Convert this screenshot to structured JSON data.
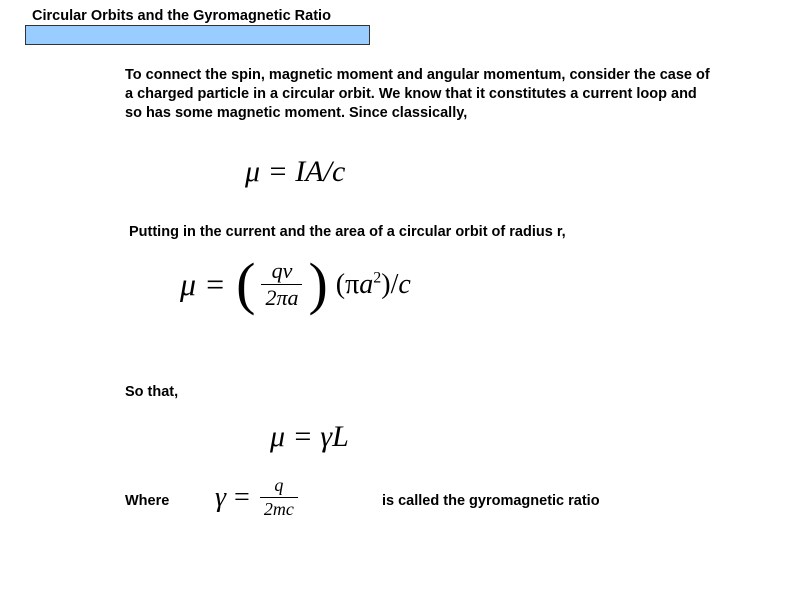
{
  "title": "Circular Orbits and the Gyromagnetic Ratio",
  "para1": "To connect the spin, magnetic moment and angular momentum, consider the case of a charged particle in a circular orbit. We know that it constitutes a current loop and so has some magnetic moment. Since classically,",
  "eq1": {
    "mu": "μ",
    "rest": " = IA/c"
  },
  "para2": "Putting in the current and the area of a circular orbit of radius r,",
  "eq2": {
    "mu": "μ",
    "eq": "=",
    "frac_num": "qv",
    "frac_den": "2πa",
    "second_open": "(",
    "second_pi": "π",
    "second_a2": "a",
    "second_sup": "2",
    "second_close": ")/",
    "second_c": "c"
  },
  "para3": "So that,",
  "eq3": {
    "text": "μ = γL"
  },
  "para4": "Where",
  "eq4": {
    "gamma": "γ",
    "eq": "=",
    "num": "q",
    "den": "2mc"
  },
  "para5": "is called the gyromagnetic ratio",
  "colors": {
    "title_bg": "#99ccff",
    "text": "#000000",
    "bg": "#ffffff"
  }
}
